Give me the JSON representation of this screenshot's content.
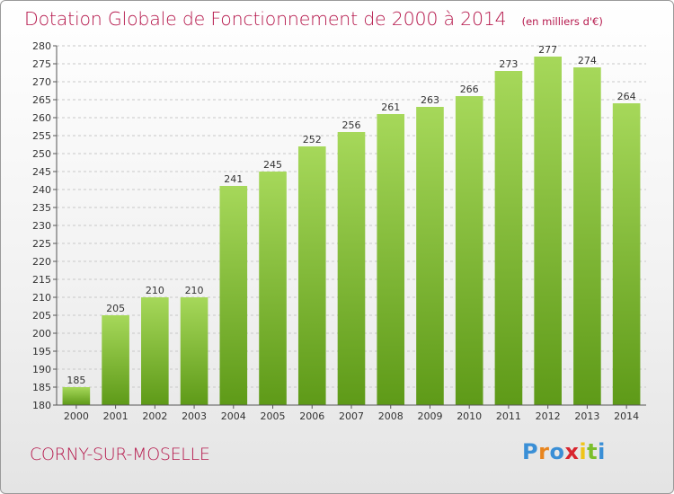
{
  "header": {
    "title": "Dotation Globale de Fonctionnement de 2000 à 2014",
    "subtitle": "(en milliers d'€)"
  },
  "footer": {
    "commune": "CORNY-SUR-MOSELLE",
    "logo_text": "Proxiti",
    "logo_colors": [
      "#3a8fd6",
      "#e8851e",
      "#3a8fd6",
      "#d8262f",
      "#f0c419",
      "#7cbf2c",
      "#3a8fd6"
    ]
  },
  "colors": {
    "title": "#b5174b",
    "bar_light": "#a6d85a",
    "bar_dark": "#5e9a18",
    "grid": "#c8c8c8"
  },
  "chart_data": {
    "type": "bar",
    "title": "Dotation Globale de Fonctionnement de 2000 à 2014",
    "subtitle": "(en milliers d'€)",
    "categories": [
      "2000",
      "2001",
      "2002",
      "2003",
      "2004",
      "2005",
      "2006",
      "2007",
      "2008",
      "2009",
      "2010",
      "2011",
      "2012",
      "2013",
      "2014"
    ],
    "values": [
      185,
      205,
      210,
      210,
      241,
      245,
      252,
      256,
      261,
      263,
      266,
      273,
      277,
      274,
      264
    ],
    "ylim": [
      180,
      280
    ],
    "ytick_step": 5,
    "grid": true,
    "data_labels": true
  }
}
